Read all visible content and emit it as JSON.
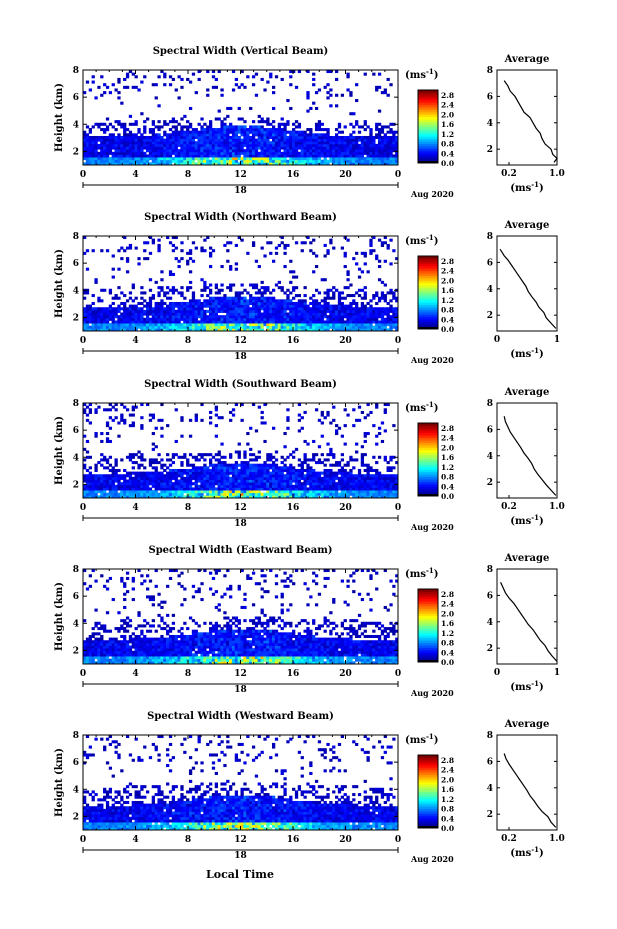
{
  "figure": {
    "bottom_xlabel": "Local Time",
    "day_label": "18",
    "date_label": "Aug 2020"
  },
  "panels": [
    {
      "title": "Spectral Width (Vertical Beam)"
    },
    {
      "title": "Spectral Width (Northward Beam)"
    },
    {
      "title": "Spectral Width (Southward Beam)"
    },
    {
      "title": "Spectral Width (Eastward Beam)"
    },
    {
      "title": "Spectral Width (Westward Beam)"
    }
  ],
  "colorbar": {
    "unit_label": "(ms",
    "unit_exp": "-1",
    "unit_close": ")"
  },
  "avg": {
    "title": "Average",
    "xlabel": "(ms",
    "xlabel_exp": "-1",
    "xlabel_close": ")"
  },
  "chart_data": [
    {
      "type": "heatmap",
      "title": "Spectral Width (Vertical Beam)",
      "ylabel": "Height (km)",
      "x_ticks": [
        "0",
        "4",
        "8",
        "12",
        "16",
        "20",
        "0"
      ],
      "y_ticks": [
        "2",
        "4",
        "6",
        "8"
      ],
      "xlim": [
        0,
        24
      ],
      "ylim": [
        1,
        8
      ],
      "colorbar_ticks": [
        "0.0",
        "0.4",
        "0.8",
        "1.2",
        "1.6",
        "2.0",
        "2.4",
        "2.8"
      ],
      "colorbar_range": [
        0,
        3.0
      ],
      "average_profile": {
        "title": "Average",
        "x_ticks": [
          "0.2",
          "1.0"
        ],
        "xlim": [
          0,
          1.0
        ],
        "y_ticks": [
          "2",
          "4",
          "6",
          "8"
        ],
        "ylim": [
          0.8,
          8
        ],
        "x": [
          0.95,
          1.0,
          0.93,
          0.9,
          0.8,
          0.75,
          0.72,
          0.65,
          0.6,
          0.55,
          0.45,
          0.4,
          0.35,
          0.3,
          0.22,
          0.18,
          0.15,
          0.12
        ],
        "y": [
          1.0,
          1.3,
          1.6,
          2.0,
          2.4,
          2.8,
          3.2,
          3.6,
          4.0,
          4.4,
          4.8,
          5.2,
          5.6,
          6.0,
          6.4,
          6.8,
          7.0,
          7.2
        ]
      }
    },
    {
      "type": "heatmap",
      "title": "Spectral Width (Northward Beam)",
      "ylabel": "Height (km)",
      "x_ticks": [
        "0",
        "4",
        "8",
        "12",
        "16",
        "20",
        "0"
      ],
      "y_ticks": [
        "2",
        "4",
        "6",
        "8"
      ],
      "xlim": [
        0,
        24
      ],
      "ylim": [
        1,
        8
      ],
      "colorbar_ticks": [
        "0.0",
        "0.4",
        "0.8",
        "1.2",
        "1.6",
        "2.0",
        "2.4",
        "2.8"
      ],
      "colorbar_range": [
        0,
        3.0
      ],
      "average_profile": {
        "title": "Average",
        "x_ticks": [
          "0",
          "1"
        ],
        "xlim": [
          0,
          1.0
        ],
        "y_ticks": [
          "2",
          "4",
          "6",
          "8"
        ],
        "ylim": [
          0.8,
          8
        ],
        "x": [
          0.98,
          0.9,
          0.82,
          0.78,
          0.7,
          0.65,
          0.58,
          0.52,
          0.48,
          0.42,
          0.36,
          0.3,
          0.24,
          0.18,
          0.12,
          0.08,
          0.05
        ],
        "y": [
          1.0,
          1.4,
          1.8,
          2.2,
          2.6,
          3.0,
          3.4,
          3.8,
          4.2,
          4.6,
          5.0,
          5.4,
          5.8,
          6.2,
          6.5,
          6.8,
          7.0
        ]
      }
    },
    {
      "type": "heatmap",
      "title": "Spectral Width (Southward Beam)",
      "ylabel": "Height (km)",
      "x_ticks": [
        "0",
        "4",
        "8",
        "12",
        "16",
        "20",
        "0"
      ],
      "y_ticks": [
        "2",
        "4",
        "6",
        "8"
      ],
      "xlim": [
        0,
        24
      ],
      "ylim": [
        1,
        8
      ],
      "colorbar_ticks": [
        "0.0",
        "0.4",
        "0.8",
        "1.2",
        "1.6",
        "2.0",
        "2.4",
        "2.8"
      ],
      "colorbar_range": [
        0,
        3.0
      ],
      "average_profile": {
        "title": "Average",
        "x_ticks": [
          "0.2",
          "1.0"
        ],
        "xlim": [
          0,
          1.0
        ],
        "y_ticks": [
          "2",
          "4",
          "6",
          "8"
        ],
        "ylim": [
          0.8,
          8
        ],
        "x": [
          0.98,
          0.9,
          0.82,
          0.75,
          0.68,
          0.62,
          0.58,
          0.52,
          0.45,
          0.4,
          0.34,
          0.28,
          0.22,
          0.18,
          0.14,
          0.12
        ],
        "y": [
          1.0,
          1.4,
          1.8,
          2.2,
          2.6,
          3.0,
          3.4,
          3.8,
          4.2,
          4.6,
          5.0,
          5.4,
          5.8,
          6.2,
          6.6,
          7.0
        ]
      }
    },
    {
      "type": "heatmap",
      "title": "Spectral Width (Eastward Beam)",
      "ylabel": "Height (km)",
      "x_ticks": [
        "0",
        "4",
        "8",
        "12",
        "16",
        "20",
        "0"
      ],
      "y_ticks": [
        "2",
        "4",
        "6",
        "8"
      ],
      "xlim": [
        0,
        24
      ],
      "ylim": [
        1,
        8
      ],
      "colorbar_ticks": [
        "0.0",
        "0.4",
        "0.8",
        "1.2",
        "1.6",
        "2.0",
        "2.4",
        "2.8"
      ],
      "colorbar_range": [
        0,
        3.0
      ],
      "average_profile": {
        "title": "Average",
        "x_ticks": [
          "0",
          "1"
        ],
        "xlim": [
          0,
          1.0
        ],
        "y_ticks": [
          "2",
          "4",
          "6",
          "8"
        ],
        "ylim": [
          0.8,
          8
        ],
        "x": [
          1.0,
          0.92,
          0.85,
          0.8,
          0.72,
          0.66,
          0.6,
          0.52,
          0.46,
          0.4,
          0.34,
          0.28,
          0.2,
          0.14,
          0.1,
          0.06
        ],
        "y": [
          1.0,
          1.4,
          1.8,
          2.2,
          2.6,
          3.0,
          3.4,
          3.8,
          4.2,
          4.6,
          5.0,
          5.4,
          5.8,
          6.2,
          6.6,
          7.0
        ]
      }
    },
    {
      "type": "heatmap",
      "title": "Spectral Width (Westward Beam)",
      "ylabel": "Height (km)",
      "xlabel": "Local Time",
      "x_ticks": [
        "0",
        "4",
        "8",
        "12",
        "16",
        "20",
        "0"
      ],
      "y_ticks": [
        "2",
        "4",
        "6",
        "8"
      ],
      "xlim": [
        0,
        24
      ],
      "ylim": [
        1,
        8
      ],
      "colorbar_ticks": [
        "0.0",
        "0.4",
        "0.8",
        "1.2",
        "1.6",
        "2.0",
        "2.4",
        "2.8"
      ],
      "colorbar_range": [
        0,
        3.0
      ],
      "average_profile": {
        "title": "Average",
        "x_ticks": [
          "0.2",
          "1.0"
        ],
        "xlim": [
          0,
          1.0
        ],
        "y_ticks": [
          "2",
          "4",
          "6",
          "8"
        ],
        "ylim": [
          0.8,
          8
        ],
        "x": [
          0.98,
          0.9,
          0.85,
          0.75,
          0.68,
          0.62,
          0.55,
          0.5,
          0.44,
          0.38,
          0.32,
          0.26,
          0.2,
          0.15,
          0.12
        ],
        "y": [
          1.0,
          1.4,
          1.8,
          2.2,
          2.6,
          3.0,
          3.4,
          3.8,
          4.2,
          4.6,
          5.0,
          5.4,
          5.8,
          6.2,
          6.6
        ]
      }
    }
  ]
}
